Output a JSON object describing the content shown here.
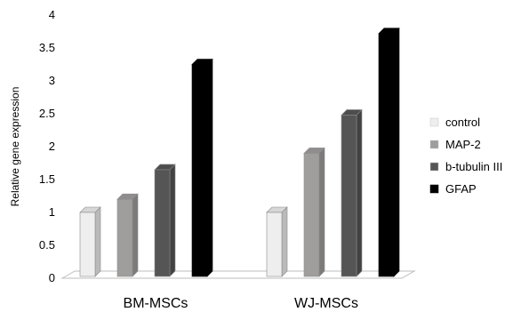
{
  "chart_data": {
    "type": "bar",
    "style": "3d-clustered-column",
    "title": "",
    "xlabel": "",
    "ylabel": "Relative gene expression",
    "ylim": [
      0,
      4
    ],
    "yticks": [
      "0",
      "0.5",
      "1",
      "1.5",
      "2",
      "2.5",
      "3",
      "3.5",
      "4"
    ],
    "grid": false,
    "legend_position": "right",
    "categories": [
      "BM-MSCs",
      "WJ-MSCs"
    ],
    "series": [
      {
        "name": "control",
        "color": "#eeeeee",
        "values": [
          1.0,
          1.0
        ]
      },
      {
        "name": "MAP-2",
        "color": "#a09d9d",
        "values": [
          1.2,
          1.9
        ]
      },
      {
        "name": "b-tubulin III",
        "color": "#555555",
        "values": [
          1.65,
          2.48
        ]
      },
      {
        "name": "GFAP",
        "color": "#000000",
        "values": [
          3.25,
          3.72
        ]
      }
    ]
  }
}
